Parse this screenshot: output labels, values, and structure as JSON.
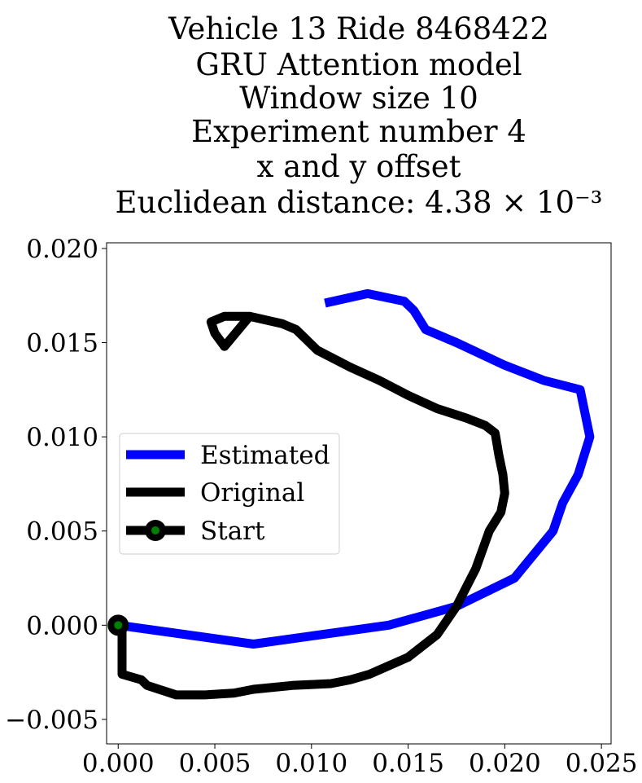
{
  "chart_data": {
    "type": "line",
    "title": [
      "Vehicle 13 Ride 8468422",
      "GRU Attention model",
      "Window size 10",
      "Experiment number 4",
      "x and y offset",
      "Euclidean distance: 4.38 × 10⁻³"
    ],
    "xlabel": "",
    "ylabel": "",
    "xlim": [
      -0.0006,
      0.0255
    ],
    "ylim": [
      -0.0063,
      0.0203
    ],
    "xticks": [
      0.0,
      0.005,
      0.01,
      0.015,
      0.02,
      0.025
    ],
    "xtick_labels": [
      "0.000",
      "0.005",
      "0.010",
      "0.015",
      "0.020",
      "0.025"
    ],
    "yticks": [
      -0.005,
      0.0,
      0.005,
      0.01,
      0.015,
      0.02
    ],
    "ytick_labels": [
      "−0.005",
      "0.000",
      "0.005",
      "0.010",
      "0.015",
      "0.020"
    ],
    "grid": false,
    "legend_position": "center-left",
    "series": [
      {
        "name": "Estimated",
        "color": "#0000ff",
        "x": [
          0.0,
          0.007,
          0.014,
          0.0175,
          0.0205,
          0.0225,
          0.023,
          0.0238,
          0.0244,
          0.0239,
          0.022,
          0.02,
          0.0175,
          0.0159,
          0.0153,
          0.0148,
          0.0129,
          0.0107
        ],
        "y": [
          0.0,
          -0.001,
          0.0,
          0.001,
          0.0025,
          0.005,
          0.0065,
          0.008,
          0.01,
          0.0125,
          0.013,
          0.0138,
          0.015,
          0.0157,
          0.0167,
          0.0172,
          0.0176,
          0.0171
        ]
      },
      {
        "name": "Original",
        "color": "#000000",
        "x": [
          0.0,
          0.0002,
          0.0002,
          0.0012,
          0.0015,
          0.003,
          0.0045,
          0.006,
          0.007,
          0.009,
          0.011,
          0.012,
          0.013,
          0.015,
          0.0165,
          0.0175,
          0.0185,
          0.0192,
          0.0198,
          0.02,
          0.0199,
          0.0197,
          0.0195,
          0.019,
          0.018,
          0.0165,
          0.015,
          0.0135,
          0.012,
          0.0103,
          0.0092,
          0.0085,
          0.0068,
          0.0055,
          0.0048,
          0.005,
          0.0055,
          0.0068
        ],
        "y": [
          0.0,
          -0.0003,
          -0.0026,
          -0.0029,
          -0.0032,
          -0.0037,
          -0.0037,
          -0.0036,
          -0.0034,
          -0.0032,
          -0.0031,
          -0.0029,
          -0.0026,
          -0.0017,
          -0.0005,
          0.001,
          0.003,
          0.005,
          0.006,
          0.007,
          0.008,
          0.009,
          0.0102,
          0.0106,
          0.011,
          0.0115,
          0.0122,
          0.013,
          0.0137,
          0.0146,
          0.0157,
          0.016,
          0.0164,
          0.0164,
          0.0161,
          0.0155,
          0.0148,
          0.0164
        ]
      }
    ],
    "start_point": {
      "name": "Start",
      "x": 0.0,
      "y": 0.0,
      "line_color": "#000000",
      "marker_edge_color": "#000000",
      "marker_face_color": "#008000"
    }
  }
}
